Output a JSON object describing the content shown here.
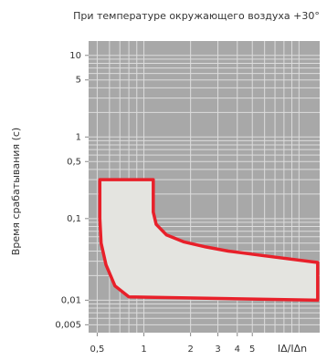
{
  "chart_data": {
    "type": "area",
    "title": "При температуре окружающего воздуха +30°",
    "y_label": "Время срабатывания (с)",
    "x_label": "IΔ/IΔn",
    "log_x": true,
    "log_y": true,
    "grid": true,
    "background": "#a8a8a8",
    "grid_color": "#dcdcdc",
    "xlim": [
      0.44,
      13.6
    ],
    "ylim": [
      0.004,
      15
    ],
    "xticks": [
      {
        "value": 0.5,
        "label": "0,5"
      },
      1,
      2,
      3,
      4,
      5
    ],
    "yticks": [
      {
        "value": 0.005,
        "label": "0,005"
      },
      {
        "value": 0.01,
        "label": "0,01"
      },
      {
        "value": 0.1,
        "label": "0,1"
      },
      {
        "value": 0.5,
        "label": "0,5"
      },
      1,
      5,
      10
    ],
    "minor_xticks": [
      0.5,
      0.6,
      0.7,
      0.8,
      0.9,
      1,
      2,
      3,
      4,
      5,
      6,
      7,
      8,
      9,
      10
    ],
    "minor_yticks": [
      0.005,
      0.006,
      0.007,
      0.008,
      0.009,
      0.01,
      0.02,
      0.03,
      0.04,
      0.05,
      0.06,
      0.07,
      0.08,
      0.09,
      0.1,
      0.2,
      0.3,
      0.4,
      0.5,
      0.6,
      0.7,
      0.8,
      0.9,
      1,
      2,
      3,
      4,
      5,
      6,
      7,
      8,
      9,
      10
    ],
    "series": [
      {
        "color": "#e8202a",
        "fill": "#e4e4e0",
        "x": [
          0.52,
          1.15,
          1.15,
          1.2,
          1.4,
          1.8,
          2.5,
          3.5,
          6,
          13.2,
          13.2,
          0.8,
          0.65,
          0.57,
          0.53,
          0.52,
          0.52
        ],
        "values": [
          0.3,
          0.3,
          0.12,
          0.085,
          0.063,
          0.052,
          0.045,
          0.04,
          0.035,
          0.029,
          0.01,
          0.011,
          0.015,
          0.027,
          0.05,
          0.1,
          0.3
        ]
      }
    ]
  }
}
